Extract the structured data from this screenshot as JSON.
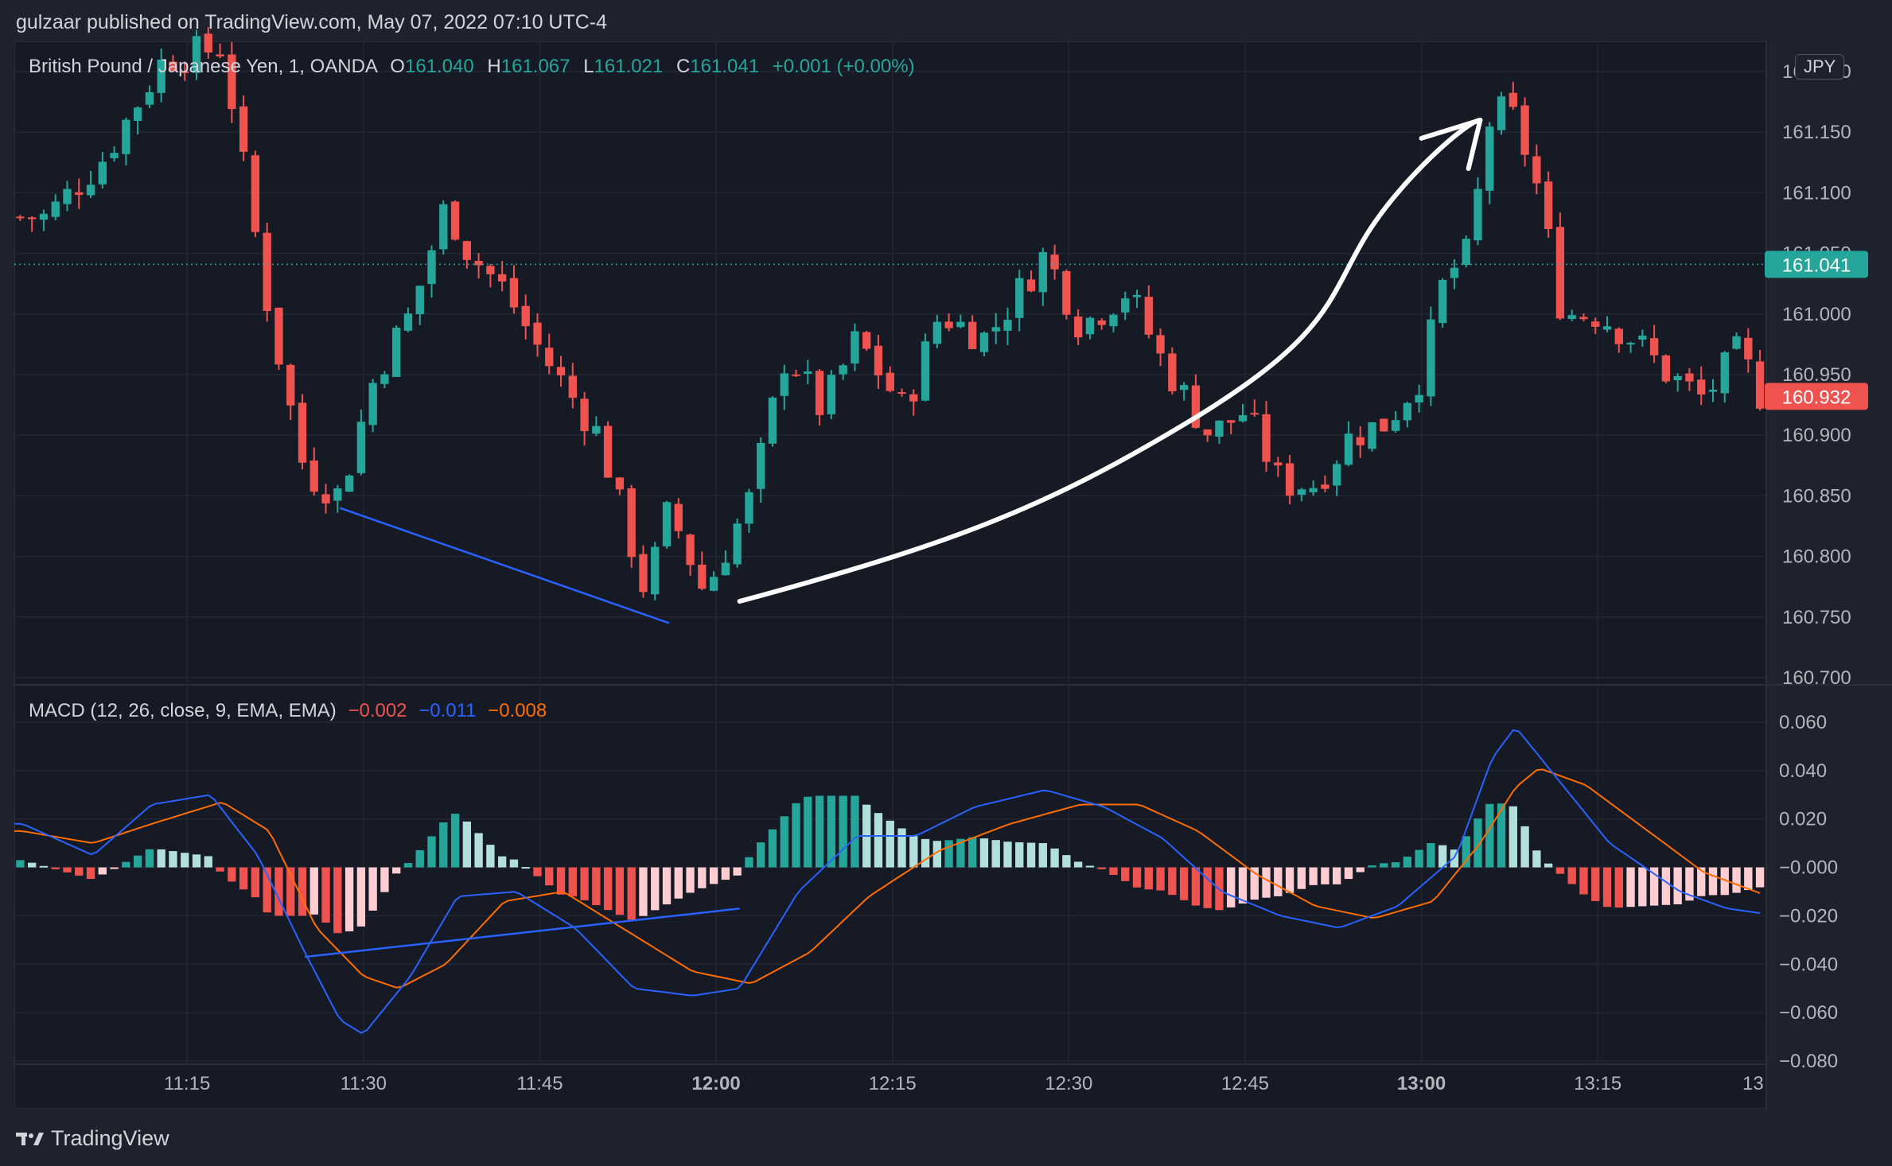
{
  "header": {
    "caption": "gulzaar published on TradingView.com, May 07, 2022 07:10 UTC-4"
  },
  "legend": {
    "symbol": "British Pound / Japanese Yen, 1, OANDA",
    "o_label": "O",
    "o_value": "161.040",
    "h_label": "H",
    "h_value": "161.067",
    "l_label": "L",
    "l_value": "161.021",
    "c_label": "C",
    "c_value": "161.041",
    "change": "+0.001 (+0.00%)"
  },
  "macd_legend": {
    "title": "MACD (12, 26, close, 9, EMA, EMA)",
    "histogram_value": "−0.002",
    "macd_value": "−0.011",
    "signal_value": "−0.008"
  },
  "currency_badge": "JPY",
  "footer": {
    "brand": "TradingView"
  },
  "colors": {
    "up": "#26a69a",
    "down": "#ef5350",
    "hist_up_strong": "#26a69a",
    "hist_up_weak": "#b2dfdb",
    "hist_down_strong": "#ef5350",
    "hist_down_weak": "#ffcdd2",
    "macd_line": "#2962ff",
    "signal_line": "#ff6d00",
    "trendline": "#2962ff",
    "annotation_arrow": "#ffffff"
  },
  "chart_data": [
    {
      "type": "candlestick",
      "title": "British Pound / Japanese Yen, 1, OANDA",
      "x_ticks": [
        "11:15",
        "11:30",
        "11:45",
        "12:00",
        "12:15",
        "12:30",
        "12:45",
        "13:00",
        "13:15",
        "13"
      ],
      "x_ticks_bold": [
        "12:00",
        "13:00"
      ],
      "y_ticks": [
        "160.700",
        "160.750",
        "160.800",
        "160.850",
        "160.900",
        "160.950",
        "161.000",
        "161.050",
        "161.100",
        "161.150",
        "161.200"
      ],
      "ylim": [
        160.7,
        161.2
      ],
      "last_price_label": "161.041",
      "current_price_label": "160.932",
      "grid": true,
      "close_path_keypoints": [
        {
          "time": "11:03",
          "price": 161.08
        },
        {
          "time": "11:08",
          "price": 161.13
        },
        {
          "time": "11:13",
          "price": 161.21
        },
        {
          "time": "11:18",
          "price": 161.22
        },
        {
          "time": "11:22",
          "price": 161.0
        },
        {
          "time": "11:25",
          "price": 160.87
        },
        {
          "time": "11:28",
          "price": 160.85
        },
        {
          "time": "11:31",
          "price": 160.95
        },
        {
          "time": "11:34",
          "price": 161.0
        },
        {
          "time": "11:37",
          "price": 161.09
        },
        {
          "time": "11:39",
          "price": 161.05
        },
        {
          "time": "11:42",
          "price": 161.02
        },
        {
          "time": "11:45",
          "price": 160.97
        },
        {
          "time": "11:50",
          "price": 160.9
        },
        {
          "time": "11:54",
          "price": 160.77
        },
        {
          "time": "11:56",
          "price": 160.84
        },
        {
          "time": "11:59",
          "price": 160.77
        },
        {
          "time": "12:03",
          "price": 160.85
        },
        {
          "time": "12:06",
          "price": 160.97
        },
        {
          "time": "12:09",
          "price": 160.92
        },
        {
          "time": "12:12",
          "price": 160.98
        },
        {
          "time": "12:16",
          "price": 160.92
        },
        {
          "time": "12:19",
          "price": 161.0
        },
        {
          "time": "12:23",
          "price": 160.98
        },
        {
          "time": "12:28",
          "price": 161.05
        },
        {
          "time": "12:31",
          "price": 160.99
        },
        {
          "time": "12:35",
          "price": 161.02
        },
        {
          "time": "12:38",
          "price": 160.96
        },
        {
          "time": "12:42",
          "price": 160.9
        },
        {
          "time": "12:45",
          "price": 160.92
        },
        {
          "time": "12:48",
          "price": 160.86
        },
        {
          "time": "12:51",
          "price": 160.86
        },
        {
          "time": "12:54",
          "price": 160.9
        },
        {
          "time": "12:57",
          "price": 160.91
        },
        {
          "time": "13:00",
          "price": 160.95
        },
        {
          "time": "13:02",
          "price": 161.03
        },
        {
          "time": "13:04",
          "price": 161.05
        },
        {
          "time": "13:06",
          "price": 161.17
        },
        {
          "time": "13:08",
          "price": 161.16
        },
        {
          "time": "13:10",
          "price": 161.1
        },
        {
          "time": "13:12",
          "price": 161.0
        },
        {
          "time": "13:15",
          "price": 161.0
        },
        {
          "time": "13:18",
          "price": 160.98
        },
        {
          "time": "13:21",
          "price": 160.95
        },
        {
          "time": "13:24",
          "price": 160.93
        },
        {
          "time": "13:27",
          "price": 160.97
        },
        {
          "time": "13:29",
          "price": 160.93
        }
      ]
    },
    {
      "type": "macd",
      "title": "MACD (12, 26, close, 9, EMA, EMA)",
      "y_ticks": [
        "0.060",
        "0.040",
        "0.020",
        "−0.000",
        "−0.020",
        "−0.040",
        "−0.060",
        "−0.080"
      ],
      "ylim": [
        -0.08,
        0.06
      ],
      "macd_keypoints": [
        {
          "time": "11:01",
          "value": 0.018
        },
        {
          "time": "11:07",
          "value": 0.005
        },
        {
          "time": "11:12",
          "value": 0.026
        },
        {
          "time": "11:17",
          "value": 0.03
        },
        {
          "time": "11:21",
          "value": 0.005
        },
        {
          "time": "11:25",
          "value": -0.035
        },
        {
          "time": "11:28",
          "value": -0.063
        },
        {
          "time": "11:30",
          "value": -0.069
        },
        {
          "time": "11:34",
          "value": -0.045
        },
        {
          "time": "11:38",
          "value": -0.012
        },
        {
          "time": "11:43",
          "value": -0.01
        },
        {
          "time": "11:48",
          "value": -0.025
        },
        {
          "time": "11:53",
          "value": -0.05
        },
        {
          "time": "11:58",
          "value": -0.053
        },
        {
          "time": "12:02",
          "value": -0.05
        },
        {
          "time": "12:07",
          "value": -0.01
        },
        {
          "time": "12:12",
          "value": 0.013
        },
        {
          "time": "12:17",
          "value": 0.013
        },
        {
          "time": "12:22",
          "value": 0.025
        },
        {
          "time": "12:28",
          "value": 0.032
        },
        {
          "time": "12:33",
          "value": 0.025
        },
        {
          "time": "12:38",
          "value": 0.012
        },
        {
          "time": "12:43",
          "value": -0.01
        },
        {
          "time": "12:48",
          "value": -0.02
        },
        {
          "time": "12:53",
          "value": -0.025
        },
        {
          "time": "12:58",
          "value": -0.016
        },
        {
          "time": "13:03",
          "value": 0.005
        },
        {
          "time": "13:06",
          "value": 0.045
        },
        {
          "time": "13:08",
          "value": 0.058
        },
        {
          "time": "13:11",
          "value": 0.04
        },
        {
          "time": "13:16",
          "value": 0.01
        },
        {
          "time": "13:22",
          "value": -0.01
        },
        {
          "time": "13:26",
          "value": -0.017
        },
        {
          "time": "13:29",
          "value": -0.019
        }
      ],
      "signal_keypoints": [
        {
          "time": "11:01",
          "value": 0.015
        },
        {
          "time": "11:07",
          "value": 0.01
        },
        {
          "time": "11:12",
          "value": 0.018
        },
        {
          "time": "11:18",
          "value": 0.027
        },
        {
          "time": "11:22",
          "value": 0.015
        },
        {
          "time": "11:26",
          "value": -0.025
        },
        {
          "time": "11:30",
          "value": -0.045
        },
        {
          "time": "11:33",
          "value": -0.05
        },
        {
          "time": "11:37",
          "value": -0.04
        },
        {
          "time": "11:42",
          "value": -0.014
        },
        {
          "time": "11:47",
          "value": -0.01
        },
        {
          "time": "11:52",
          "value": -0.025
        },
        {
          "time": "11:58",
          "value": -0.043
        },
        {
          "time": "12:03",
          "value": -0.048
        },
        {
          "time": "12:08",
          "value": -0.035
        },
        {
          "time": "12:13",
          "value": -0.012
        },
        {
          "time": "12:19",
          "value": 0.007
        },
        {
          "time": "12:25",
          "value": 0.018
        },
        {
          "time": "12:31",
          "value": 0.026
        },
        {
          "time": "12:36",
          "value": 0.026
        },
        {
          "time": "12:41",
          "value": 0.015
        },
        {
          "time": "12:46",
          "value": -0.003
        },
        {
          "time": "12:51",
          "value": -0.016
        },
        {
          "time": "12:56",
          "value": -0.021
        },
        {
          "time": "13:01",
          "value": -0.014
        },
        {
          "time": "13:05",
          "value": 0.01
        },
        {
          "time": "13:08",
          "value": 0.033
        },
        {
          "time": "13:10",
          "value": 0.041
        },
        {
          "time": "13:14",
          "value": 0.034
        },
        {
          "time": "13:19",
          "value": 0.016
        },
        {
          "time": "13:24",
          "value": -0.002
        },
        {
          "time": "13:29",
          "value": -0.011
        }
      ]
    }
  ]
}
